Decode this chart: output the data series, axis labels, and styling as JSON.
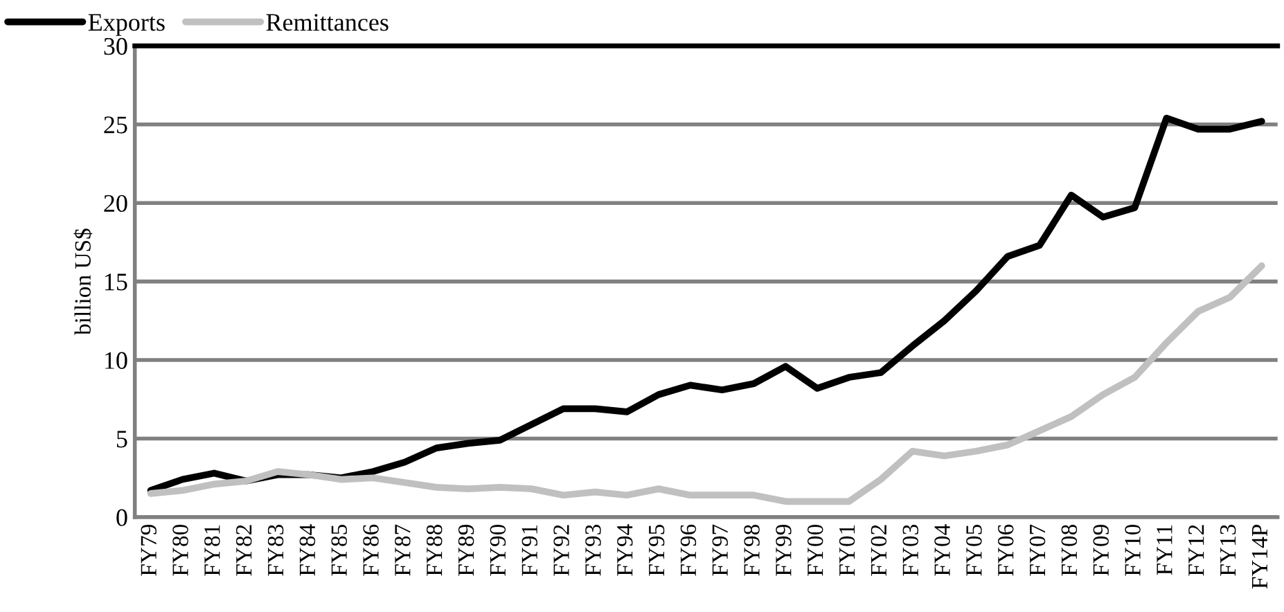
{
  "chart_data": {
    "type": "line",
    "ylabel": "billion US$",
    "categories": [
      "FY79",
      "FY80",
      "FY81",
      "FY82",
      "FY83",
      "FY84",
      "FY85",
      "FY86",
      "FY87",
      "FY88",
      "FY89",
      "FY90",
      "FY91",
      "FY92",
      "FY93",
      "FY94",
      "FY95",
      "FY96",
      "FY97",
      "FY98",
      "FY99",
      "FY00",
      "FY01",
      "FY02",
      "FY03",
      "FY04",
      "FY05",
      "FY06",
      "FY07",
      "FY08",
      "FY09",
      "FY10",
      "FY11",
      "FY12",
      "FY13",
      "FY14P"
    ],
    "series": [
      {
        "name": "Exports",
        "color": "#000000",
        "values": [
          1.7,
          2.4,
          2.8,
          2.3,
          2.7,
          2.7,
          2.5,
          2.9,
          3.5,
          4.4,
          4.7,
          4.9,
          5.9,
          6.9,
          6.9,
          6.7,
          7.8,
          8.4,
          8.1,
          8.5,
          9.6,
          8.2,
          8.9,
          9.2,
          10.9,
          12.5,
          14.4,
          16.6,
          17.3,
          20.5,
          19.1,
          19.7,
          25.4,
          24.7,
          24.7,
          25.2
        ]
      },
      {
        "name": "Remittances",
        "color": "#c0c0c0",
        "values": [
          1.5,
          1.7,
          2.1,
          2.3,
          2.9,
          2.7,
          2.4,
          2.5,
          2.2,
          1.9,
          1.8,
          1.9,
          1.8,
          1.4,
          1.6,
          1.4,
          1.8,
          1.4,
          1.4,
          1.4,
          1.0,
          1.0,
          1.0,
          2.4,
          4.2,
          3.9,
          4.2,
          4.6,
          5.5,
          6.4,
          7.8,
          8.9,
          11.1,
          13.1,
          14.0,
          16.0
        ]
      }
    ],
    "ylim": [
      0,
      30
    ],
    "yticks": [
      0,
      5,
      10,
      15,
      20,
      25,
      30
    ],
    "grid": "y",
    "legend": "top left",
    "marker": "none",
    "line_style": "solid"
  }
}
